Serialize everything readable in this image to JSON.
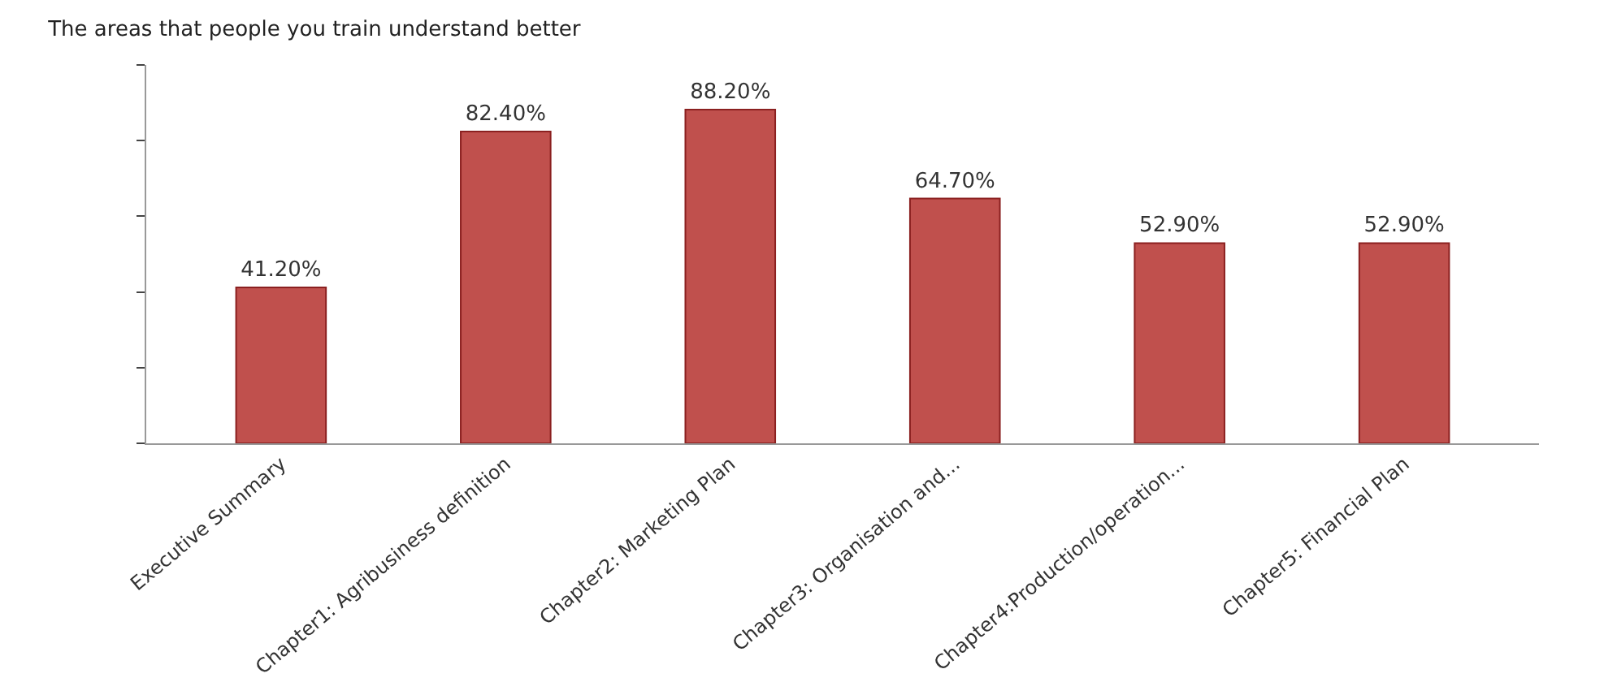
{
  "chart_data": {
    "type": "bar",
    "title": "The areas that people you train understand better",
    "categories": [
      "Executive Summary",
      "Chapter1: Agribusiness definition",
      "Chapter2: Marketing Plan",
      "Chapter3: Organisation and...",
      "Chapter4:Production/operation...",
      "Chapter5: Financial Plan"
    ],
    "values": [
      41.2,
      82.4,
      88.2,
      64.7,
      52.9,
      52.9
    ],
    "value_labels": [
      "41.20%",
      "82.40%",
      "88.20%",
      "64.70%",
      "52.90%",
      "52.90%"
    ],
    "color": "#c0504d",
    "ylim": [
      0,
      100
    ],
    "yticks": [
      {
        "value": 0,
        "label": null
      },
      {
        "value": 20,
        "label": null
      },
      {
        "value": 40,
        "label": null
      },
      {
        "value": 60,
        "label": null
      },
      {
        "value": 80,
        "label": null
      },
      {
        "value": 100,
        "label": null
      }
    ],
    "tick_labels": "x"
  }
}
